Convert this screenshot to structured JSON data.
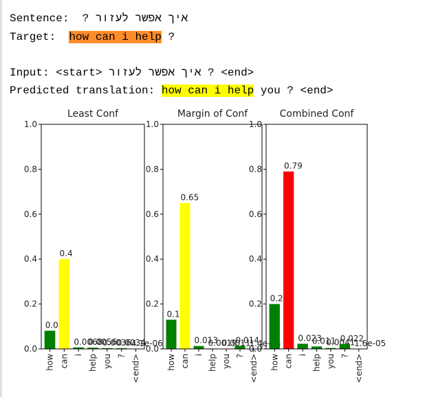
{
  "output": {
    "sentence_label": "Sentence:",
    "sentence": "איך אפשר לעזור ?",
    "target_label": "Target:",
    "target_highlight": "how can i help",
    "target_rest": "?",
    "input_label": "Input:",
    "input": "<start> איך אפשר לעזור ? <end>",
    "predicted_label": "Predicted translation:",
    "predicted_highlight": "how can i help",
    "predicted_rest": "you ? <end>"
  },
  "chart_data": [
    {
      "type": "bar",
      "title": "Least Conf",
      "categories": [
        "how",
        "can",
        "i",
        "help",
        "you",
        "?",
        "<end>"
      ],
      "values": [
        0.081,
        0.4,
        0.0068,
        0.0056,
        0.0036,
        0.0034,
        4.1e-06
      ],
      "value_labels": [
        "0.081",
        "0.4",
        "0.0068",
        "0.0056",
        "0.0036",
        "0.0034",
        "4.1e-06"
      ],
      "colors": [
        "green",
        "yellow",
        "green",
        "green",
        "green",
        "green",
        "green"
      ],
      "ylim": [
        0,
        1.0
      ],
      "yticks": [
        {
          "value": 0,
          "label": "0.0"
        },
        0.2,
        0.4,
        0.6,
        0.8,
        {
          "value": 1.0,
          "label": "1.0"
        }
      ]
    },
    {
      "type": "bar",
      "title": "Margin of Conf",
      "categories": [
        "how",
        "can",
        "i",
        "help",
        "you",
        "?",
        "<end>"
      ],
      "values": [
        0.13,
        0.65,
        0.013,
        0.0019,
        0.0011,
        0.014,
        1.4e-05
      ],
      "value_labels": [
        "0.13",
        "0.65",
        "0.013",
        "0.0019",
        "0.0011",
        "0.014",
        "1.4e-05"
      ],
      "colors": [
        "green",
        "yellow",
        "green",
        "green",
        "green",
        "green",
        "green"
      ],
      "ylim": [
        0,
        1.0
      ],
      "yticks": [
        {
          "value": 0,
          "label": "0.0"
        },
        0.2,
        0.4,
        0.6,
        0.8,
        {
          "value": 1.0,
          "label": "1.0"
        }
      ]
    },
    {
      "type": "bar",
      "title": "Combined Conf",
      "categories": [
        "how",
        "can",
        "i",
        "help",
        "you",
        "?",
        "<end>"
      ],
      "values": [
        0.2,
        0.79,
        0.023,
        0.011,
        0.0041,
        0.022,
        1.6e-05
      ],
      "value_labels": [
        "0.2",
        "0.79",
        "0.023",
        "0.011",
        "0.0041",
        "0.022",
        "1.6e-05"
      ],
      "colors": [
        "green",
        "red",
        "green",
        "green",
        "green",
        "green",
        "green"
      ],
      "ylim": [
        0,
        1.0
      ],
      "yticks": [
        {
          "value": 0,
          "label": "0.0"
        },
        0.2,
        0.4,
        0.6,
        0.8,
        {
          "value": 1.0,
          "label": "1.0"
        }
      ]
    }
  ]
}
